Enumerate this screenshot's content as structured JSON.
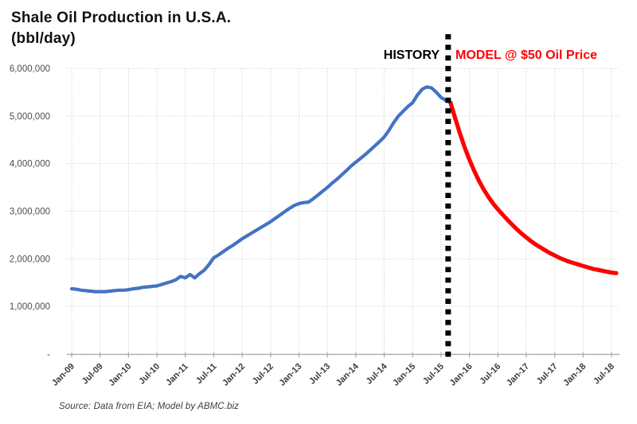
{
  "header": {
    "title_line1": "Shale Oil Production in U.S.A.",
    "title_line2": "(bbl/day)"
  },
  "annotations": {
    "history_label": "HISTORY",
    "model_label": "MODEL @ $50 Oil Price"
  },
  "footer": {
    "source_text": "Source:  Data from EIA; Model by ABMC.biz"
  },
  "colors": {
    "history_line": "#4472C4",
    "model_line": "#FF0000",
    "history_label_color": "#000000",
    "model_label_color": "#FF0000",
    "gridline": "#C6C6C6",
    "axis_line": "#A9A9A9",
    "x_tick_text": "#3A3A3A",
    "y_tick_text": "#4D4D4D",
    "divider": "#000000"
  },
  "chart_data": {
    "type": "line",
    "title": "Shale Oil Production in U.S.A. (bbl/day)",
    "units": "million bbl/day",
    "grid": true,
    "legend_position": "inline-annotations",
    "x_axis": {
      "tick_labels": [
        "Jan-09",
        "Jul-09",
        "Jan-10",
        "Jul-10",
        "Jan-11",
        "Jul-11",
        "Jan-12",
        "Jul-12",
        "Jan-13",
        "Jul-13",
        "Jan-14",
        "Jul-14",
        "Jan-15",
        "Jul-15",
        "Jan-16",
        "Jul-16",
        "Jan-17",
        "Jul-17",
        "Jan-18",
        "Jul-18"
      ],
      "tick_months": [
        0,
        6,
        12,
        18,
        24,
        30,
        36,
        42,
        48,
        54,
        60,
        66,
        72,
        78,
        84,
        90,
        96,
        102,
        108,
        114
      ]
    },
    "y_axis": {
      "tick_labels": [
        "6,000,000",
        "5,000,000",
        "4,000,000",
        "3,000,000",
        "2,000,000",
        "1,000,000",
        "-"
      ],
      "tick_values": [
        6,
        5,
        4,
        3,
        2,
        1,
        0
      ],
      "range": [
        0,
        6
      ]
    },
    "divider_month": 79.5,
    "series": [
      {
        "name": "History",
        "color": "#4472C4",
        "line_width": 4.2,
        "start_month": 0,
        "monthly_values": [
          1.37,
          1.36,
          1.34,
          1.33,
          1.32,
          1.31,
          1.31,
          1.31,
          1.32,
          1.33,
          1.34,
          1.34,
          1.35,
          1.37,
          1.38,
          1.4,
          1.41,
          1.42,
          1.43,
          1.46,
          1.49,
          1.52,
          1.56,
          1.63,
          1.6,
          1.67,
          1.6,
          1.69,
          1.76,
          1.88,
          2.02,
          2.08,
          2.15,
          2.22,
          2.28,
          2.35,
          2.42,
          2.48,
          2.54,
          2.6,
          2.66,
          2.72,
          2.78,
          2.85,
          2.92,
          2.99,
          3.06,
          3.12,
          3.16,
          3.18,
          3.19,
          3.26,
          3.34,
          3.42,
          3.5,
          3.59,
          3.67,
          3.76,
          3.85,
          3.95,
          4.03,
          4.11,
          4.19,
          4.28,
          4.37,
          4.46,
          4.56,
          4.7,
          4.86,
          5.0,
          5.1,
          5.2,
          5.28,
          5.44,
          5.56,
          5.61,
          5.59,
          5.5,
          5.39,
          5.33,
          5.28
        ]
      },
      {
        "name": "Model @ $50 Oil Price",
        "color": "#FF0000",
        "line_width": 5.2,
        "start_month": 80,
        "monthly_values": [
          5.28,
          4.95,
          4.63,
          4.34,
          4.08,
          3.85,
          3.64,
          3.46,
          3.3,
          3.16,
          3.04,
          2.93,
          2.82,
          2.72,
          2.62,
          2.53,
          2.45,
          2.37,
          2.3,
          2.24,
          2.18,
          2.12,
          2.07,
          2.02,
          1.98,
          1.94,
          1.91,
          1.88,
          1.85,
          1.82,
          1.79,
          1.77,
          1.75,
          1.73,
          1.71,
          1.7
        ]
      }
    ]
  }
}
